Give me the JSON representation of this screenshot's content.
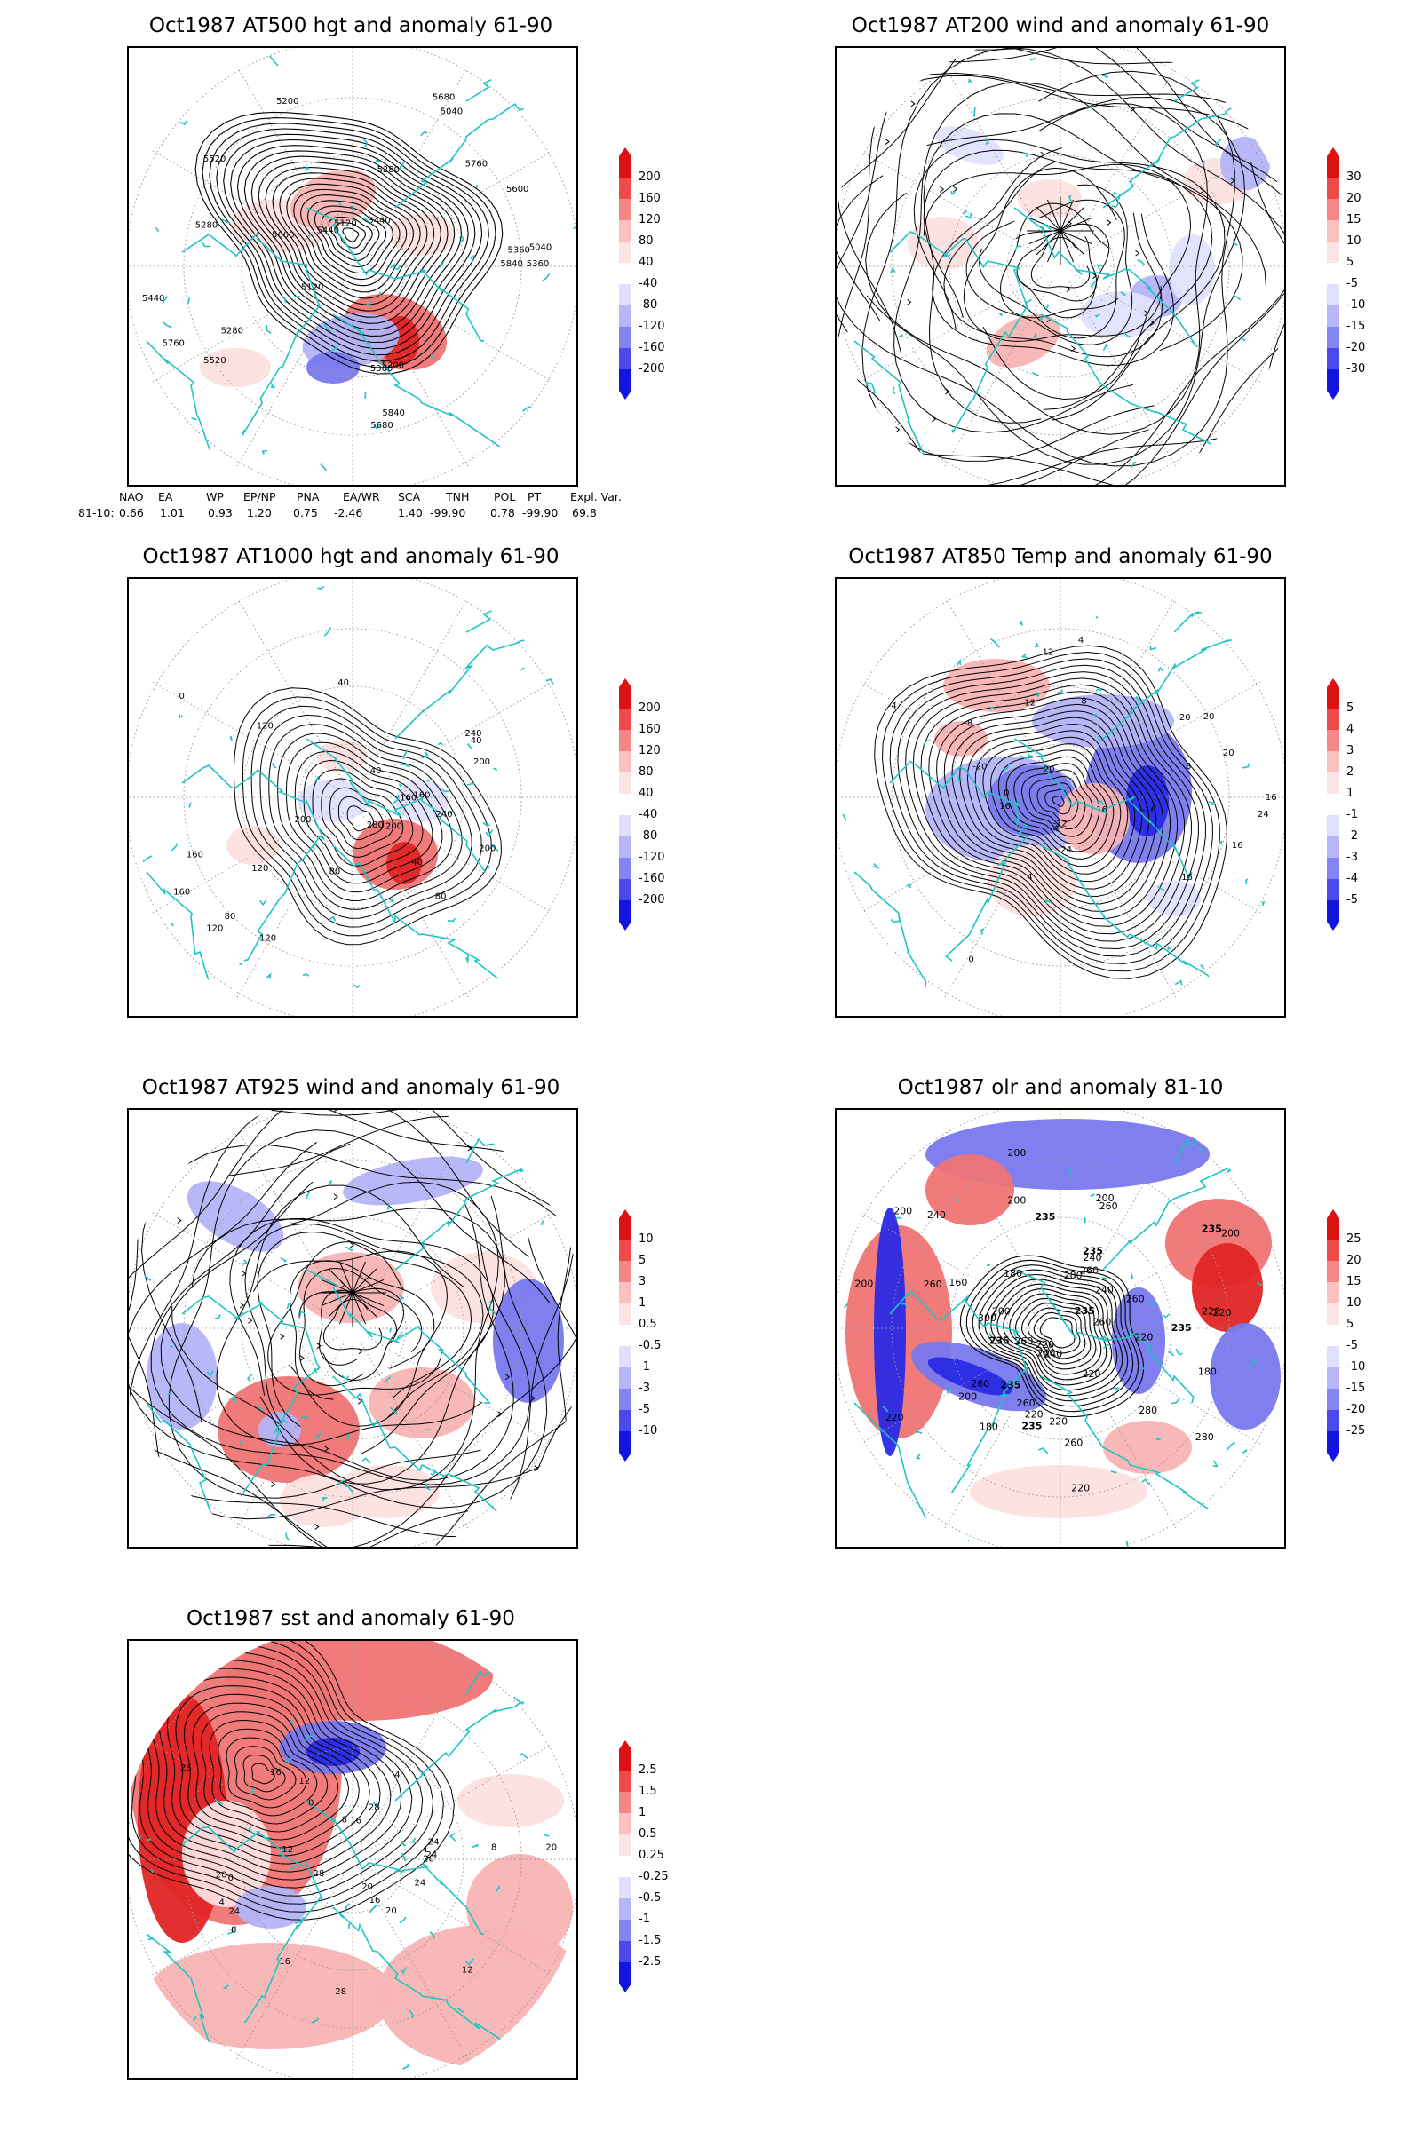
{
  "panels": [
    {
      "title": "Oct1987 AT500 hgt and anomaly 61-90",
      "bar": [
        "200",
        "160",
        "120",
        "80",
        "40",
        "-40",
        "-80",
        "-120",
        "-160",
        "-200"
      ]
    },
    {
      "title": "Oct1987 AT200 wind and anomaly 61-90",
      "bar": [
        "30",
        "20",
        "15",
        "10",
        "5",
        "-5",
        "-10",
        "-15",
        "-20",
        "-30"
      ]
    },
    {
      "title": "Oct1987 AT1000 hgt and anomaly 61-90",
      "bar": [
        "200",
        "160",
        "120",
        "80",
        "40",
        "-40",
        "-80",
        "-120",
        "-160",
        "-200"
      ]
    },
    {
      "title": "Oct1987 AT850 Temp and anomaly 61-90",
      "bar": [
        "5",
        "4",
        "3",
        "2",
        "1",
        "-1",
        "-2",
        "-3",
        "-4",
        "-5"
      ]
    },
    {
      "title": "Oct1987 AT925 wind and anomaly 61-90",
      "bar": [
        "10",
        "5",
        "3",
        "1",
        "0.5",
        "-0.5",
        "-1",
        "-3",
        "-5",
        "-10"
      ]
    },
    {
      "title": "Oct1987 olr and anomaly 81-10",
      "bar": [
        "25",
        "20",
        "15",
        "10",
        "5",
        "-5",
        "-10",
        "-15",
        "-20",
        "-25"
      ]
    },
    {
      "title": "Oct1987 sst and anomaly 61-90",
      "bar": [
        "2.5",
        "1.5",
        "1",
        "0.5",
        "0.25",
        "-0.25",
        "-0.5",
        "-1",
        "-1.5",
        "-2.5"
      ]
    }
  ],
  "teleconnection": {
    "headers": [
      "NAO",
      "EA",
      "WP",
      "EP/NP",
      "PNA",
      "EA/WR",
      "SCA",
      "TNH",
      "POL",
      "PT",
      "Expl. Var."
    ],
    "row_label": "81-10:",
    "values": [
      "0.66",
      "1.01",
      "0.93",
      "1.20",
      "0.75",
      "-2.46",
      "1.40",
      "-99.90",
      "0.78",
      "-99.90",
      "69.8"
    ]
  },
  "contour_labels": {
    "p500": [
      "5840",
      "5680",
      "5600",
      "5520",
      "5440",
      "5360",
      "5280",
      "5200",
      "5120",
      "5040",
      "5760",
      "5440",
      "5360",
      "5200",
      "5120",
      "5040",
      "5280",
      "5600",
      "5680",
      "5760",
      "5840",
      "5520",
      "5440",
      "5360",
      "5280"
    ],
    "p1000": [
      "160",
      "160",
      "80",
      "40",
      "120",
      "120",
      "160",
      "200",
      "40",
      "80",
      "200",
      "240",
      "280",
      "240",
      "200",
      "160",
      "120",
      "120",
      "200",
      "80",
      "40",
      "0",
      "40"
    ],
    "p850": [
      "16",
      "12",
      "8",
      "4",
      "0",
      "-4",
      "-8",
      "-12",
      "-16",
      "-20",
      "20",
      "16",
      "24",
      "20",
      "16",
      "12",
      "8",
      "4",
      "0",
      "-4",
      "16",
      "20",
      "16",
      "24",
      "20"
    ],
    "polr": [
      "235",
      "220",
      "240",
      "260",
      "235",
      "220",
      "260",
      "240",
      "220",
      "260",
      "235",
      "260",
      "260",
      "200",
      "220",
      "180",
      "200",
      "160",
      "180",
      "200",
      "220",
      "240",
      "235",
      "260",
      "235",
      "200",
      "220",
      "200",
      "240",
      "280",
      "300",
      "280",
      "220",
      "200",
      "220",
      "235",
      "260",
      "240",
      "200",
      "260",
      "220",
      "235",
      "200",
      "180",
      "235",
      "280",
      "260"
    ],
    "psst": [
      "28",
      "28",
      "24",
      "20",
      "16",
      "20",
      "24",
      "28",
      "16",
      "12",
      "8",
      "4",
      "0",
      "8",
      "12",
      "16",
      "20",
      "24",
      "28",
      "12",
      "8",
      "4",
      "0",
      "4",
      "28",
      "24",
      "20",
      "16"
    ]
  }
}
